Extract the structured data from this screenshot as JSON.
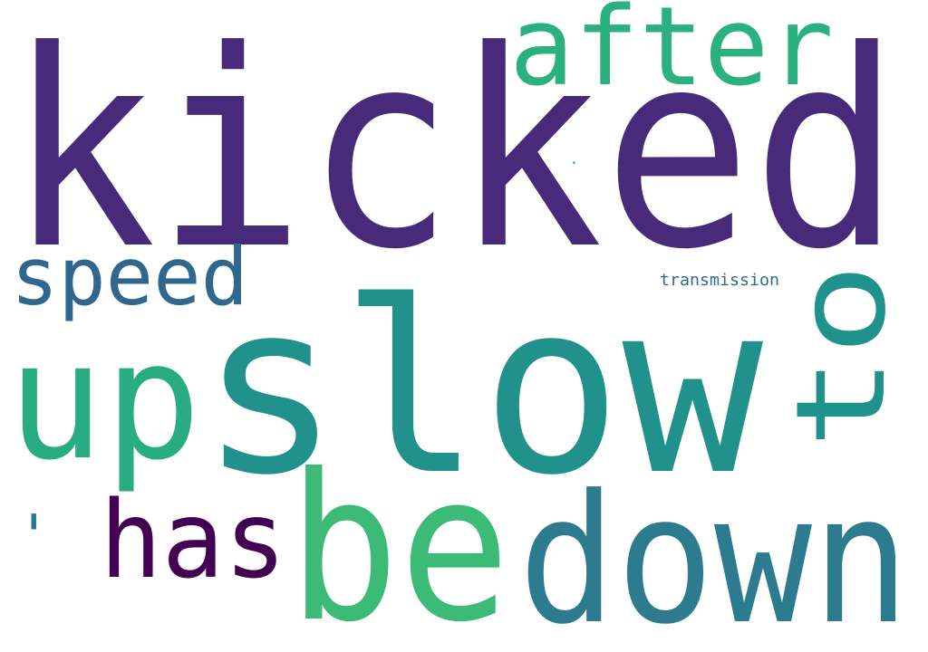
{
  "words": [
    {
      "text": "kicked",
      "color": "#472a7a"
    },
    {
      "text": "slow",
      "color": "#21918c"
    },
    {
      "text": "be",
      "color": "#3bbb75"
    },
    {
      "text": "down",
      "color": "#2c7b8e"
    },
    {
      "text": "up",
      "color": "#27ad81"
    },
    {
      "text": "after",
      "color": "#2bb07f"
    },
    {
      "text": "to",
      "color": "#20928c"
    },
    {
      "text": "has",
      "color": "#440154"
    },
    {
      "text": "speed",
      "color": "#30678e"
    },
    {
      "text": "transmission",
      "color": "#2f6b8e"
    },
    {
      "text": "'",
      "color": "#2a788e"
    },
    {
      "text": ".",
      "color": "#35b779"
    }
  ]
}
